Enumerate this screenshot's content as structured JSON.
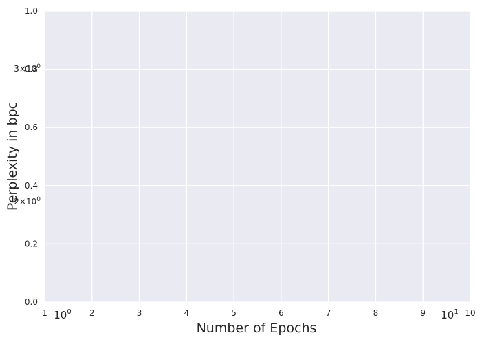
{
  "chart_data": {
    "type": "line",
    "title": "",
    "xlabel": "Number of Epochs",
    "ylabel": "Perplexity in bpc",
    "xlim": [
      1,
      10
    ],
    "ylim": [
      0.0,
      1.0
    ],
    "grid": true,
    "background_color": "#eaeaf2",
    "grid_color": "#ffffff",
    "x_ticks": [
      "1",
      "2",
      "3",
      "4",
      "5",
      "6",
      "7",
      "8",
      "9",
      "10"
    ],
    "y_ticks": [
      "0.0",
      "0.2",
      "0.4",
      "0.6",
      "0.8",
      "1.0"
    ],
    "log_x_ticks": [
      {
        "base": "10",
        "exp": "0"
      },
      {
        "base": "10",
        "exp": "1"
      }
    ],
    "log_y_ticks": [
      {
        "mant": "3",
        "base": "10",
        "exp": "0"
      },
      {
        "mant": "2",
        "base": "10",
        "exp": "0"
      }
    ],
    "series": []
  }
}
